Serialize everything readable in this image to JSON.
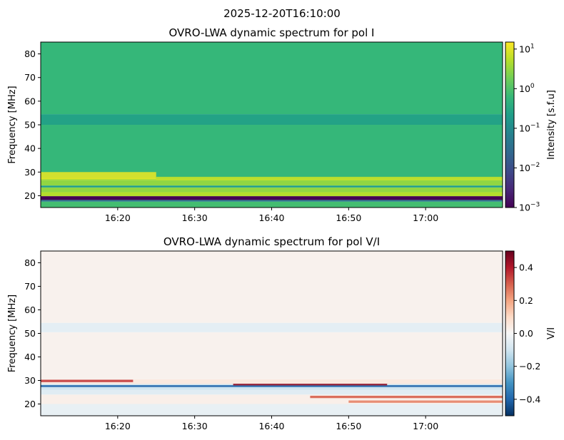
{
  "suptitle": "2025-12-20T16:10:00",
  "chart_data": [
    {
      "type": "heatmap",
      "title": "OVRO-LWA dynamic spectrum for pol I",
      "xlabel": "",
      "ylabel": "Frequency [MHz]",
      "xlim": [
        "16:10",
        "17:10"
      ],
      "ylim": [
        15,
        85
      ],
      "x_ticks": [
        "16:20",
        "16:30",
        "16:40",
        "16:50",
        "17:00"
      ],
      "y_ticks": [
        20,
        30,
        40,
        50,
        60,
        70,
        80
      ],
      "colorbar": {
        "label": "Intensity [s.f.u]",
        "scale": "log",
        "colormap": "viridis",
        "range": [
          0.001,
          15
        ],
        "ticks": [
          0.001,
          0.01,
          0.1,
          1,
          10
        ],
        "tick_labels": [
          {
            "base": "10",
            "exp": "−3"
          },
          {
            "base": "10",
            "exp": "−2"
          },
          {
            "base": "10",
            "exp": "−1"
          },
          {
            "base": "10",
            "exp": "0"
          },
          {
            "base": "10",
            "exp": "1"
          }
        ]
      },
      "bands": [
        {
          "f0": 15,
          "f1": 17.5,
          "value": 0.8
        },
        {
          "f0": 17.5,
          "f1": 18.2,
          "value": 0.05
        },
        {
          "f0": 18.2,
          "f1": 19.8,
          "value": 0.001
        },
        {
          "f0": 19.8,
          "f1": 21.5,
          "value": 5
        },
        {
          "f0": 21.5,
          "f1": 23.5,
          "value": 3
        },
        {
          "f0": 23.5,
          "f1": 24.3,
          "value": 0.2
        },
        {
          "f0": 24.3,
          "f1": 26.5,
          "value": 3
        },
        {
          "f0": 26.5,
          "f1": 27.5,
          "value": 4
        },
        {
          "f0": 27.5,
          "f1": 50,
          "value": 0.6
        },
        {
          "f0": 50,
          "f1": 54.5,
          "value": 0.25
        },
        {
          "f0": 54.5,
          "f1": 85,
          "value": 0.6
        }
      ],
      "features": [
        {
          "t0": "16:10",
          "t1": "16:25",
          "f0": 27,
          "f1": 30,
          "value": 10
        },
        {
          "t0": "16:25",
          "t1": "17:10",
          "f0": 26.5,
          "f1": 28,
          "value": 6
        }
      ]
    },
    {
      "type": "heatmap",
      "title": "OVRO-LWA dynamic spectrum for pol V/I",
      "xlabel": "",
      "ylabel": "Frequency [MHz]",
      "xlim": [
        "16:10",
        "17:10"
      ],
      "ylim": [
        15,
        85
      ],
      "x_ticks": [
        "16:20",
        "16:30",
        "16:40",
        "16:50",
        "17:00"
      ],
      "y_ticks": [
        20,
        30,
        40,
        50,
        60,
        70,
        80
      ],
      "colorbar": {
        "label": "V/I",
        "scale": "linear",
        "colormap": "RdBu_r",
        "range": [
          -0.5,
          0.5
        ],
        "ticks": [
          -0.4,
          -0.2,
          0.0,
          0.2,
          0.4
        ],
        "tick_labels": [
          "−0.4",
          "−0.2",
          "0.0",
          "0.2",
          "0.4"
        ]
      },
      "bands": [
        {
          "f0": 15,
          "f1": 20,
          "value": -0.04
        },
        {
          "f0": 20,
          "f1": 24,
          "value": 0.03
        },
        {
          "f0": 24,
          "f1": 26,
          "value": -0.06
        },
        {
          "f0": 26,
          "f1": 28.5,
          "value": -0.1
        },
        {
          "f0": 28.5,
          "f1": 30.5,
          "value": 0.05
        },
        {
          "f0": 30.5,
          "f1": 50.5,
          "value": 0.02
        },
        {
          "f0": 50.5,
          "f1": 54.5,
          "value": -0.05
        },
        {
          "f0": 54.5,
          "f1": 85,
          "value": 0.02
        }
      ],
      "features": [
        {
          "t0": "16:10",
          "t1": "16:22",
          "f0": 29.3,
          "f1": 30.3,
          "value": 0.35
        },
        {
          "t0": "16:10",
          "t1": "17:10",
          "f0": 27.2,
          "f1": 28.0,
          "value": -0.4
        },
        {
          "t0": "16:35",
          "t1": "16:55",
          "f0": 27.9,
          "f1": 28.6,
          "value": 0.45
        },
        {
          "t0": "16:45",
          "t1": "17:10",
          "f0": 22.5,
          "f1": 23.5,
          "value": 0.3
        },
        {
          "t0": "16:50",
          "t1": "17:10",
          "f0": 20.5,
          "f1": 21.5,
          "value": 0.25
        }
      ]
    }
  ]
}
